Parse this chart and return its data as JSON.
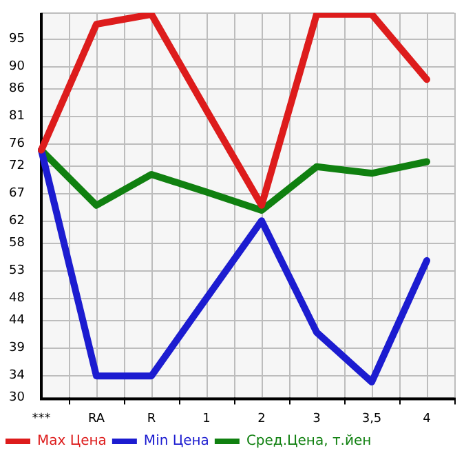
{
  "chart_data": {
    "type": "line",
    "categories": [
      "***",
      "RA",
      "R",
      "1",
      "2",
      "3",
      "3,5",
      "4"
    ],
    "series": [
      {
        "name": "Max Цена",
        "color": "#dd1c1c",
        "values": [
          74.8,
          97.6,
          99.4,
          82,
          64.8,
          99.4,
          99.4,
          87.6
        ]
      },
      {
        "name": "Min Цена",
        "color": "#1c1cd0",
        "values": [
          74.8,
          33.9,
          33.9,
          48,
          62.0,
          41.8,
          32.8,
          54.8
        ]
      },
      {
        "name": "Сред.Цена, т.йен",
        "color": "#108010",
        "values": [
          74.8,
          64.8,
          70.4,
          67.2,
          63.9,
          71.8,
          70.6,
          72.7
        ]
      }
    ],
    "ylim": [
      30,
      99.64
    ],
    "yticks": [
      30,
      34,
      39,
      44,
      48,
      53,
      58,
      62,
      67,
      72,
      76,
      81,
      86,
      90,
      95
    ],
    "grid": true,
    "legend": "bottom",
    "marker": "none",
    "line_style": "solid"
  }
}
